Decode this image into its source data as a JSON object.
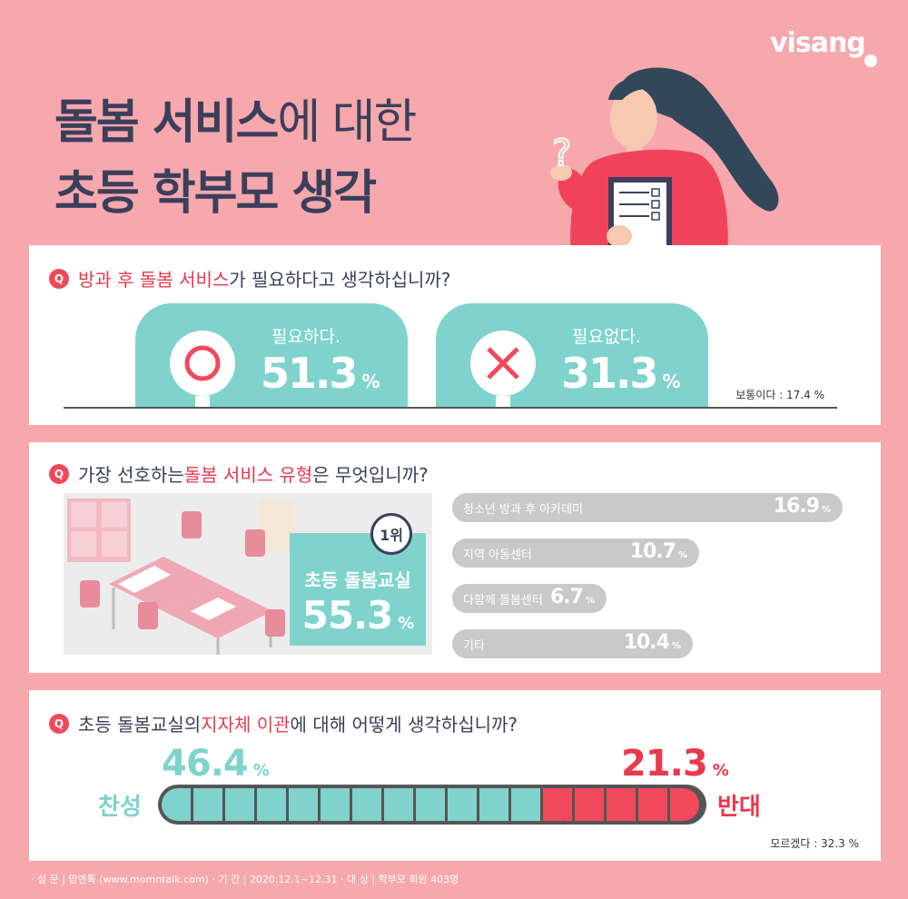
{
  "brand": "visang",
  "title": {
    "line1_bold": "돌봄 서비스",
    "line1_light": "에 대한",
    "line2": "초등 학부모 생각"
  },
  "q1": {
    "badge": "Q",
    "pre": "",
    "highlight": "방과 후 돌봄 서비스",
    "post": "가 필요하다고 생각하십니까?",
    "yes": {
      "label": "필요하다.",
      "value": "51.3",
      "unit": "%",
      "icon": "circle-o-icon"
    },
    "no": {
      "label": "필요없다.",
      "value": "31.3",
      "unit": "%",
      "icon": "x-mark-icon"
    },
    "neutral": "보통이다 : 17.4 %"
  },
  "q2": {
    "badge": "Q",
    "pre": "가장 선호하는 ",
    "highlight": "돌봄 서비스 유형",
    "post": "은 무엇입니까?",
    "rank_badge": "1위",
    "top_label": "초등 돌봄교실",
    "top_value": "55.3",
    "top_unit": "%",
    "bars": [
      {
        "label": "청소년 방과 후 아카데미",
        "value": "16.9",
        "unit": "%",
        "fraction": 0.169
      },
      {
        "label": "지역 아동센터",
        "value": "10.7",
        "unit": "%",
        "fraction": 0.107
      },
      {
        "label": "다함께 돌봄센터",
        "value": "6.7",
        "unit": "%",
        "fraction": 0.067
      },
      {
        "label": "기타",
        "value": "10.4",
        "unit": "%",
        "fraction": 0.104
      }
    ]
  },
  "q3": {
    "badge": "Q",
    "pre": "초등 돌봄교실의 ",
    "highlight": "지자체 이관",
    "post": "에 대해 어떻게 생각하십니까?",
    "agree": {
      "word": "찬성",
      "value": "46.4",
      "unit": "%"
    },
    "disagree": {
      "word": "반대",
      "value": "21.3",
      "unit": "%"
    },
    "unknown": "모르겠다 : 32.3 %",
    "agree_color": "#7fd3cc",
    "disagree_color": "#f2485b"
  },
  "footer": "· 설 문 | 맘앤톡 (www.momntalk.com)   · 기 간 | 2020.12.1~12.31   · 대 상 | 학부모 회원 403명",
  "colors": {
    "background": "#f6a8ad",
    "mint": "#7fd3cc",
    "red": "#f2485b",
    "navy": "#3b3f5c"
  }
}
